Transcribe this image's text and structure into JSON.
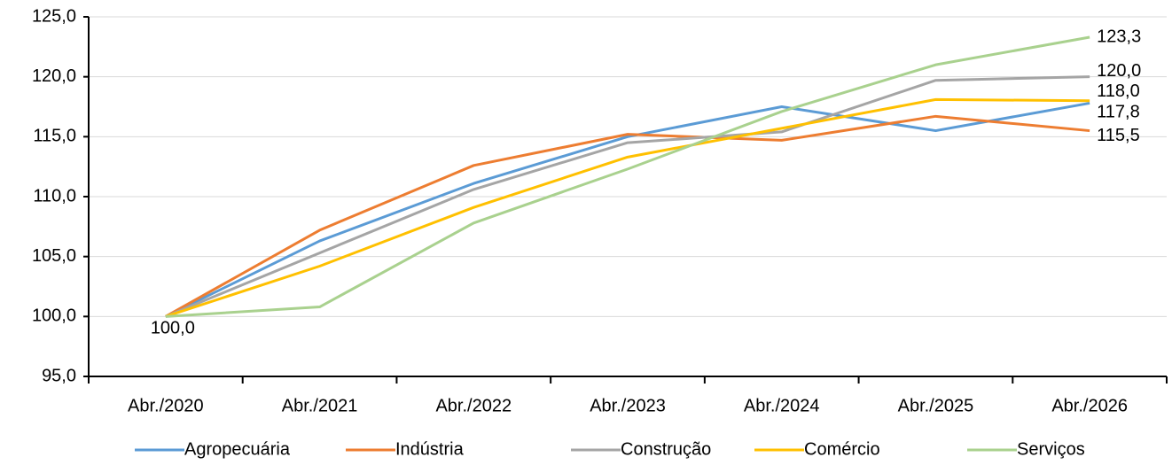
{
  "chart_data": {
    "type": "line",
    "categories": [
      "Abr./2020",
      "Abr./2021",
      "Abr./2022",
      "Abr./2023",
      "Abr./2024",
      "Abr./2025",
      "Abr./2026"
    ],
    "series": [
      {
        "name": "Agropecuária",
        "color": "#5b9bd5",
        "values": [
          100,
          106.3,
          111.1,
          115.0,
          117.5,
          115.5,
          117.8
        ],
        "value_labels": [
          "100,0",
          null,
          null,
          null,
          null,
          null,
          "117,8"
        ]
      },
      {
        "name": "Indústria",
        "color": "#ed7d31",
        "values": [
          100,
          107.2,
          112.6,
          115.2,
          114.7,
          116.7,
          115.5
        ],
        "value_labels": [
          null,
          null,
          null,
          null,
          null,
          null,
          "115,5"
        ]
      },
      {
        "name": "Construção",
        "color": "#a5a5a5",
        "values": [
          100,
          105.3,
          110.6,
          114.5,
          115.4,
          119.7,
          120.0
        ],
        "value_labels": [
          null,
          null,
          null,
          null,
          null,
          null,
          "120,0"
        ]
      },
      {
        "name": "Comércio",
        "color": "#ffc000",
        "values": [
          100,
          104.2,
          109.1,
          113.3,
          115.7,
          118.1,
          118.0
        ],
        "value_labels": [
          null,
          null,
          null,
          null,
          null,
          null,
          "118,0"
        ]
      },
      {
        "name": "Serviços",
        "color": "#a9d18e",
        "values": [
          100,
          100.8,
          107.8,
          112.3,
          117.1,
          121.0,
          123.3
        ],
        "value_labels": [
          null,
          null,
          null,
          null,
          null,
          null,
          "123,3"
        ]
      }
    ],
    "ylim": [
      95,
      125
    ],
    "yticks": [
      {
        "value": 95,
        "label": "95,0"
      },
      {
        "value": 100,
        "label": "100,0"
      },
      {
        "value": 105,
        "label": "105,0"
      },
      {
        "value": 110,
        "label": "110,0"
      },
      {
        "value": 115,
        "label": "115,0"
      },
      {
        "value": 120,
        "label": "120,0"
      },
      {
        "value": 125,
        "label": "125,0"
      }
    ],
    "grid": true,
    "legend": "bottom"
  }
}
